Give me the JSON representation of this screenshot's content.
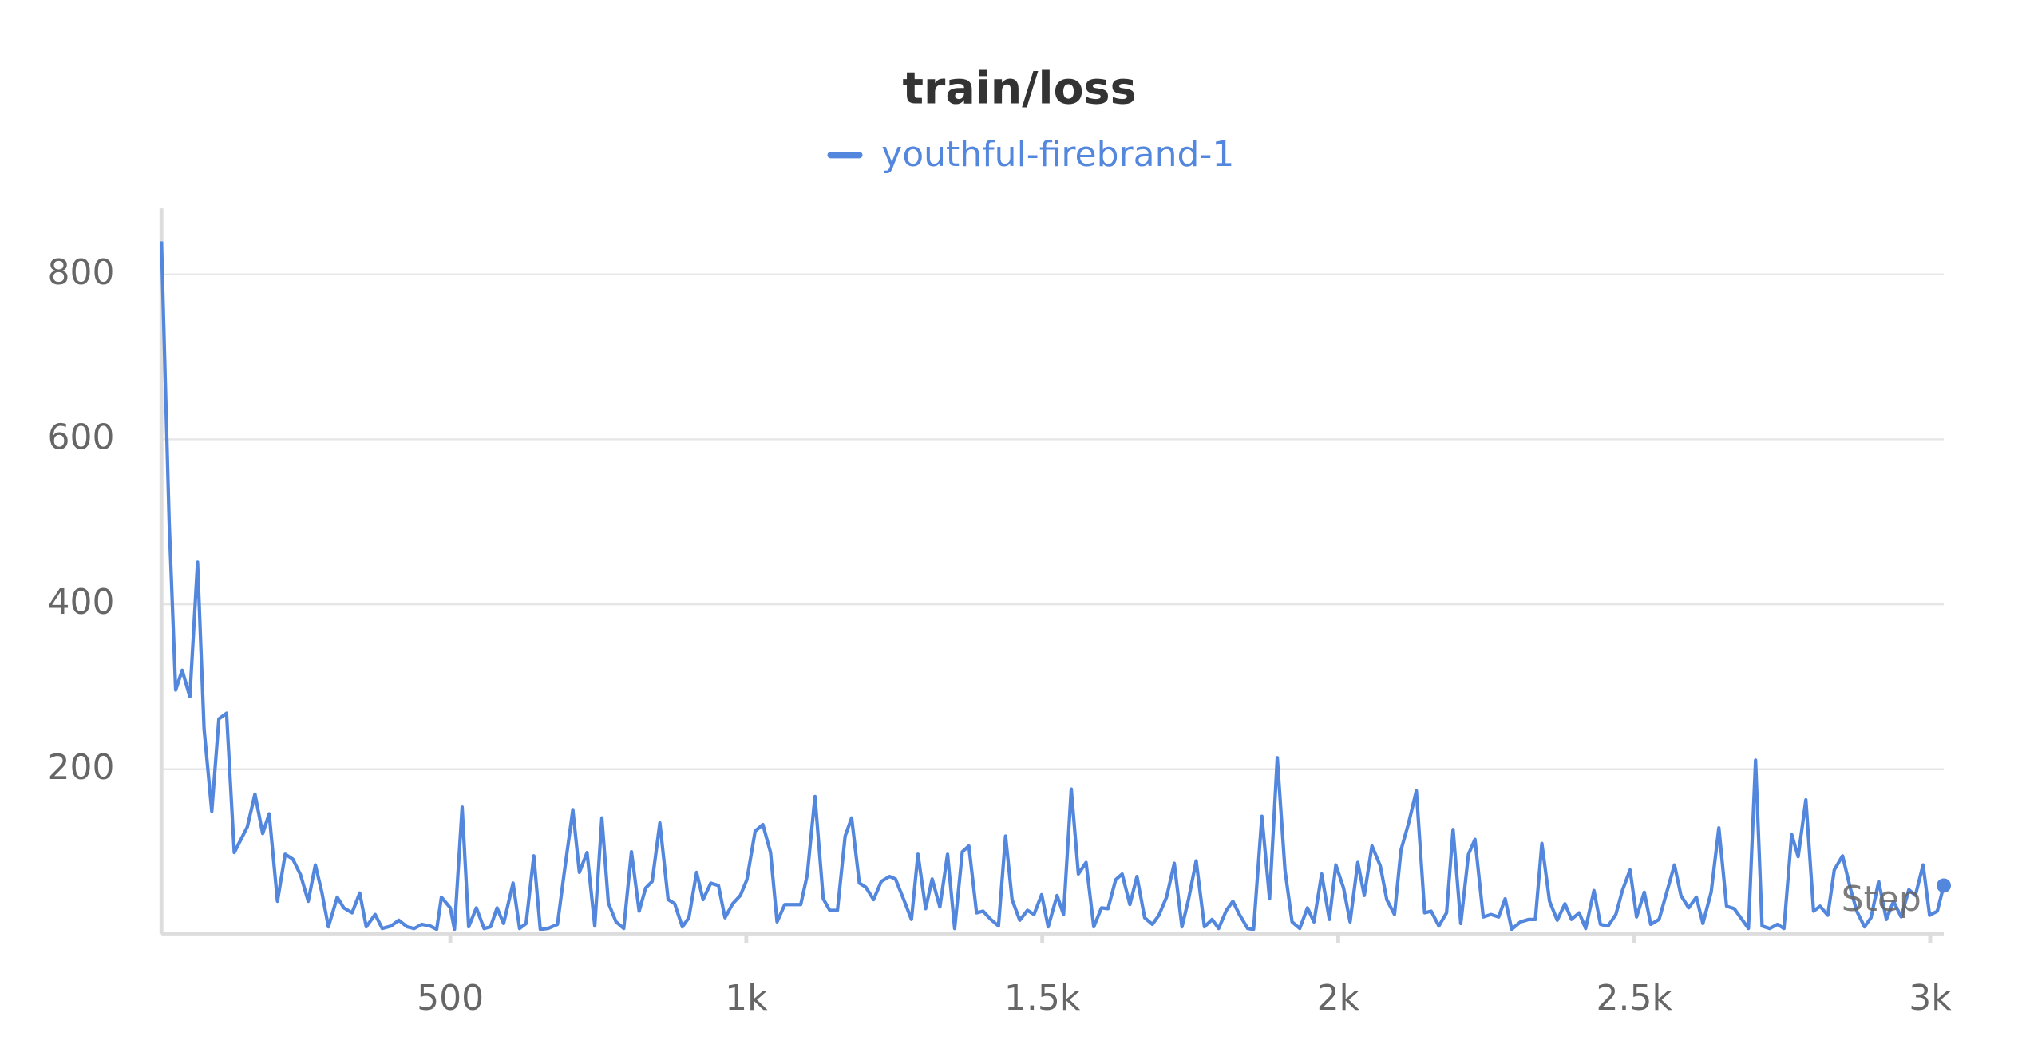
{
  "chart_data": {
    "type": "line",
    "title": "train/loss",
    "xlabel": "Step",
    "xlim": [
      12,
      3023
    ],
    "ylim": [
      0,
      880
    ],
    "xticks": [
      500,
      {
        "value": 1000,
        "label": "1k"
      },
      {
        "value": 1500,
        "label": "1.5k"
      },
      {
        "value": 2000,
        "label": "2k"
      },
      {
        "value": 2500,
        "label": "2.5k"
      },
      {
        "value": 3000,
        "label": "3k"
      }
    ],
    "yticks": [
      200,
      400,
      600,
      800
    ],
    "grid": true,
    "x": [
      12,
      25,
      36,
      47,
      60,
      73,
      84,
      97,
      109,
      122,
      135,
      157,
      170,
      183,
      194,
      208,
      221,
      234,
      247,
      260,
      272,
      283,
      294,
      309,
      320,
      334,
      347,
      358,
      373,
      385,
      400,
      413,
      427,
      439,
      452,
      466,
      477,
      485,
      500,
      507,
      520,
      531,
      544,
      557,
      568,
      579,
      590,
      606,
      617,
      628,
      641,
      652,
      665,
      681,
      692,
      707,
      718,
      731,
      744,
      756,
      767,
      780,
      793,
      806,
      819,
      830,
      841,
      854,
      868,
      879,
      892,
      903,
      916,
      927,
      940,
      953,
      964,
      977,
      990,
      1001,
      1015,
      1028,
      1041,
      1052,
      1065,
      1079,
      1092,
      1103,
      1116,
      1130,
      1141,
      1154,
      1167,
      1178,
      1191,
      1202,
      1215,
      1228,
      1242,
      1252,
      1266,
      1279,
      1290,
      1303,
      1314,
      1327,
      1340,
      1352,
      1365,
      1376,
      1389,
      1400,
      1413,
      1426,
      1438,
      1449,
      1462,
      1475,
      1486,
      1499,
      1510,
      1525,
      1536,
      1549,
      1561,
      1574,
      1587,
      1600,
      1611,
      1624,
      1635,
      1648,
      1660,
      1673,
      1686,
      1697,
      1710,
      1723,
      1736,
      1747,
      1760,
      1774,
      1787,
      1798,
      1811,
      1822,
      1833,
      1847,
      1857,
      1871,
      1884,
      1897,
      1910,
      1922,
      1935,
      1948,
      1959,
      1972,
      1985,
      1996,
      2009,
      2020,
      2033,
      2044,
      2057,
      2071,
      2082,
      2095,
      2106,
      2119,
      2132,
      2146,
      2157,
      2170,
      2183,
      2194,
      2207,
      2220,
      2231,
      2245,
      2258,
      2271,
      2282,
      2293,
      2308,
      2322,
      2333,
      2344,
      2357,
      2370,
      2383,
      2394,
      2407,
      2418,
      2432,
      2443,
      2456,
      2469,
      2480,
      2493,
      2504,
      2517,
      2528,
      2542,
      2555,
      2568,
      2579,
      2592,
      2605,
      2616,
      2630,
      2643,
      2656,
      2669,
      2680,
      2693,
      2705,
      2716,
      2729,
      2742,
      2753,
      2766,
      2777,
      2790,
      2803,
      2814,
      2827,
      2838,
      2852,
      2865,
      2876,
      2889,
      2900,
      2913,
      2926,
      2938,
      2951,
      2964,
      2975,
      2988,
      2999,
      3012,
      3023
    ],
    "series": [
      {
        "name": "youthful-firebrand-1",
        "color": "#5387dd",
        "values": [
          840,
          501,
          296,
          320,
          288,
          451,
          249,
          149,
          261,
          268,
          99,
          130,
          170,
          122,
          146,
          40,
          97,
          91,
          72,
          40,
          84,
          51,
          9,
          45,
          32,
          26,
          50,
          9,
          24,
          7,
          10,
          17,
          9,
          7,
          12,
          10,
          6,
          45,
          32,
          6,
          154,
          9,
          32,
          7,
          9,
          32,
          13,
          62,
          7,
          13,
          95,
          6,
          7,
          12,
          72,
          151,
          75,
          99,
          10,
          141,
          38,
          15,
          7,
          100,
          28,
          56,
          64,
          135,
          42,
          37,
          9,
          20,
          75,
          42,
          62,
          59,
          20,
          37,
          47,
          66,
          125,
          133,
          99,
          15,
          36,
          36,
          36,
          72,
          167,
          43,
          29,
          29,
          119,
          141,
          62,
          57,
          42,
          64,
          70,
          67,
          42,
          18,
          97,
          31,
          67,
          33,
          97,
          7,
          100,
          107,
          26,
          28,
          18,
          10,
          119,
          42,
          17,
          29,
          24,
          48,
          9,
          47,
          24,
          176,
          73,
          87,
          9,
          32,
          31,
          66,
          73,
          36,
          70,
          20,
          12,
          23,
          45,
          86,
          9,
          42,
          89,
          9,
          18,
          7,
          29,
          40,
          24,
          7,
          6,
          143,
          43,
          214,
          78,
          15,
          7,
          32,
          15,
          73,
          18,
          84,
          56,
          15,
          87,
          47,
          107,
          83,
          42,
          24,
          102,
          135,
          174,
          26,
          28,
          10,
          26,
          127,
          13,
          97,
          115,
          21,
          24,
          21,
          43,
          6,
          15,
          18,
          18,
          110,
          40,
          17,
          37,
          18,
          26,
          7,
          53,
          12,
          10,
          24,
          53,
          78,
          21,
          51,
          12,
          18,
          51,
          84,
          47,
          32,
          45,
          13,
          51,
          129,
          34,
          31,
          20,
          7,
          211,
          10,
          7,
          12,
          7,
          121,
          94,
          163,
          28,
          34,
          23,
          78,
          95,
          56,
          28,
          9,
          20,
          64,
          18,
          40,
          21,
          54,
          47,
          84,
          23,
          28,
          59
        ]
      }
    ]
  }
}
